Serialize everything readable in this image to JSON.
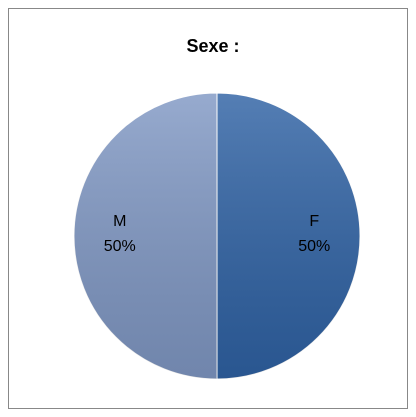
{
  "chart_data": {
    "type": "pie",
    "title": "Sexe :",
    "categories": [
      "F",
      "M"
    ],
    "values": [
      50,
      50
    ],
    "value_labels": [
      "50%",
      "50%"
    ],
    "colors": [
      "#2f62a4",
      "#8098c4"
    ]
  }
}
